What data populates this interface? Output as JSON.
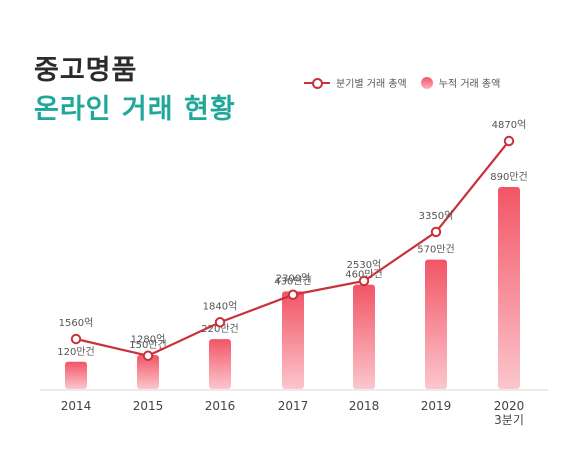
{
  "title": {
    "line1": "중고명품",
    "line2": "온라인 거래 현황"
  },
  "legend": {
    "line_label": "분기별 거래 총액",
    "bar_label": "누적 거래 총액"
  },
  "colors": {
    "line": "#c8323c",
    "bar_top": "#f25565",
    "bar_bottom": "#fbc6cd",
    "title_accent": "#1fa89a"
  },
  "chart_data": {
    "type": "bar",
    "categories": [
      "2014",
      "2015",
      "2016",
      "2017",
      "2018",
      "2019",
      "2020\n3분기"
    ],
    "series": [
      {
        "name": "분기별 거래 총액",
        "type": "line",
        "values": [
          1560,
          1280,
          1840,
          2300,
          2530,
          3350,
          4870
        ],
        "labels": [
          "1560억",
          "1280억",
          "1840억",
          "2300억",
          "2530억",
          "3350억",
          "4870억"
        ]
      },
      {
        "name": "누적 거래 총액",
        "type": "bar",
        "values": [
          120,
          150,
          220,
          430,
          460,
          570,
          890
        ],
        "labels": [
          "120만건",
          "150만건",
          "220만건",
          "430만건",
          "460만건",
          "570만건",
          "890만건"
        ]
      }
    ],
    "grid": false,
    "legend_position": "top-right"
  }
}
